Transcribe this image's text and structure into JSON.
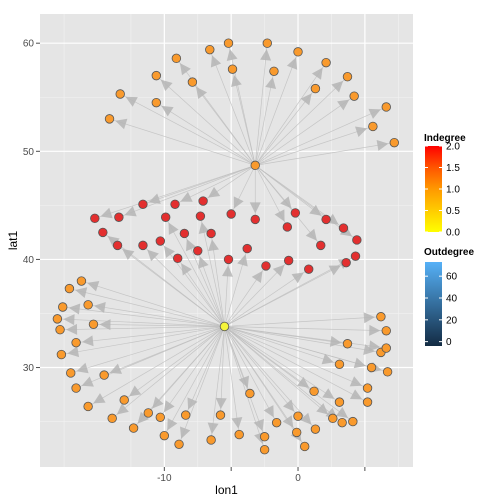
{
  "chart_data": {
    "type": "scatter",
    "xlabel": "lon1",
    "ylabel": "lat1",
    "xlim": [
      -19.3,
      8.6
    ],
    "ylim": [
      20.8,
      62.7
    ],
    "x_ticks": [
      -10,
      -5,
      0,
      5
    ],
    "x_tick_labels": [
      "-10",
      "",
      "0",
      ""
    ],
    "y_ticks": [
      30,
      40,
      50,
      60
    ],
    "y_tick_labels": [
      "30",
      "40",
      "50",
      "60"
    ],
    "grid": true,
    "colors": {
      "panel": "#E5E5E5",
      "edge": "#BDBDBD",
      "outline": "#555555"
    },
    "hubs": [
      {
        "name": "top",
        "x": -3.2,
        "y": 48.7,
        "indegree": 1,
        "color": "#F99A2D"
      },
      {
        "name": "bottom",
        "x": -5.5,
        "y": 33.8,
        "indegree": 0,
        "color": "#F5F53A"
      }
    ],
    "top_targets": [
      [
        -5.2,
        60.0
      ],
      [
        -2.3,
        60.0
      ],
      [
        0.0,
        59.2
      ],
      [
        2.1,
        58.2
      ],
      [
        3.7,
        56.9
      ],
      [
        4.2,
        55.1
      ],
      [
        6.6,
        54.1
      ],
      [
        5.6,
        52.3
      ],
      [
        7.2,
        50.8
      ],
      [
        1.3,
        55.8
      ],
      [
        -1.8,
        57.4
      ],
      [
        -4.9,
        57.6
      ],
      [
        -6.6,
        59.4
      ],
      [
        -9.1,
        58.6
      ],
      [
        -10.6,
        57.0
      ],
      [
        -7.9,
        56.4
      ],
      [
        -13.3,
        55.3
      ],
      [
        -10.6,
        54.5
      ],
      [
        -14.1,
        53.0
      ]
    ],
    "bottom_targets": [
      [
        -16.2,
        38.0
      ],
      [
        -17.1,
        37.3
      ],
      [
        -17.6,
        35.6
      ],
      [
        -18.0,
        34.5
      ],
      [
        -15.7,
        35.8
      ],
      [
        -17.8,
        33.5
      ],
      [
        -16.6,
        32.3
      ],
      [
        -15.3,
        34.0
      ],
      [
        -17.7,
        31.2
      ],
      [
        -17.0,
        29.5
      ],
      [
        -16.6,
        28.1
      ],
      [
        -14.5,
        29.3
      ],
      [
        -15.7,
        26.4
      ],
      [
        -13.9,
        25.3
      ],
      [
        -13.0,
        27.0
      ],
      [
        -11.2,
        25.8
      ],
      [
        -12.3,
        24.4
      ],
      [
        -10.3,
        25.4
      ],
      [
        -10.0,
        23.7
      ],
      [
        -8.9,
        22.9
      ],
      [
        -8.4,
        25.6
      ],
      [
        -6.5,
        23.3
      ],
      [
        -5.8,
        25.6
      ],
      [
        -4.4,
        23.8
      ],
      [
        -3.6,
        27.6
      ],
      [
        -2.5,
        23.6
      ],
      [
        -2.5,
        22.4
      ],
      [
        -1.6,
        24.9
      ],
      [
        -0.1,
        24.0
      ],
      [
        0.5,
        22.7
      ],
      [
        0.0,
        25.5
      ],
      [
        1.3,
        24.3
      ],
      [
        1.2,
        27.8
      ],
      [
        2.6,
        25.3
      ],
      [
        3.3,
        24.9
      ],
      [
        4.1,
        25.0
      ],
      [
        3.1,
        26.8
      ],
      [
        5.2,
        26.8
      ],
      [
        5.2,
        28.1
      ],
      [
        5.5,
        30.0
      ],
      [
        6.7,
        29.6
      ],
      [
        6.2,
        31.4
      ],
      [
        6.6,
        31.8
      ],
      [
        6.6,
        33.4
      ],
      [
        6.2,
        34.7
      ],
      [
        3.7,
        32.2
      ],
      [
        3.1,
        30.3
      ]
    ],
    "red_top_targets": [
      [
        -15.2,
        43.8
      ],
      [
        -13.4,
        43.9
      ],
      [
        -11.6,
        45.1
      ],
      [
        -9.2,
        45.1
      ],
      [
        -7.1,
        45.4
      ],
      [
        -5.0,
        44.2
      ],
      [
        -3.2,
        43.7
      ],
      [
        -0.2,
        44.3
      ],
      [
        2.1,
        43.7
      ],
      [
        3.4,
        42.9
      ],
      [
        4.4,
        41.8
      ],
      [
        1.7,
        41.3
      ],
      [
        -0.8,
        43.0
      ]
    ],
    "red_bottom_targets": [
      [
        -14.6,
        42.5
      ],
      [
        -13.5,
        41.3
      ],
      [
        -11.6,
        41.3
      ],
      [
        -10.3,
        41.7
      ],
      [
        -8.5,
        42.4
      ],
      [
        -7.5,
        40.8
      ],
      [
        -6.5,
        42.4
      ],
      [
        -5.2,
        40.0
      ],
      [
        -3.8,
        41.0
      ],
      [
        -2.4,
        39.4
      ],
      [
        -0.7,
        39.9
      ],
      [
        0.8,
        39.1
      ],
      [
        3.6,
        39.7
      ],
      [
        4.3,
        40.3
      ],
      [
        -7.3,
        44.0
      ],
      [
        -9.9,
        43.9
      ],
      [
        -9.0,
        40.1
      ]
    ],
    "red_color": "#E32F2F",
    "target_color": "#F99A2D",
    "legend": [
      {
        "title": "Indegree",
        "stops": [
          "#FFFF00",
          "#FFCC00",
          "#FF9900",
          "#FF5500",
          "#FF0000"
        ],
        "range": [
          0,
          2
        ],
        "labels": [
          "0.0",
          "0.5",
          "1.0",
          "1.5",
          "2.0"
        ]
      },
      {
        "title": "Outdegree",
        "stops": [
          "#132B43",
          "#56B1F7"
        ],
        "range": [
          -4,
          73
        ],
        "labels": [
          "0",
          "20",
          "40",
          "60"
        ],
        "label_values": [
          0,
          20,
          40,
          60
        ]
      }
    ]
  }
}
